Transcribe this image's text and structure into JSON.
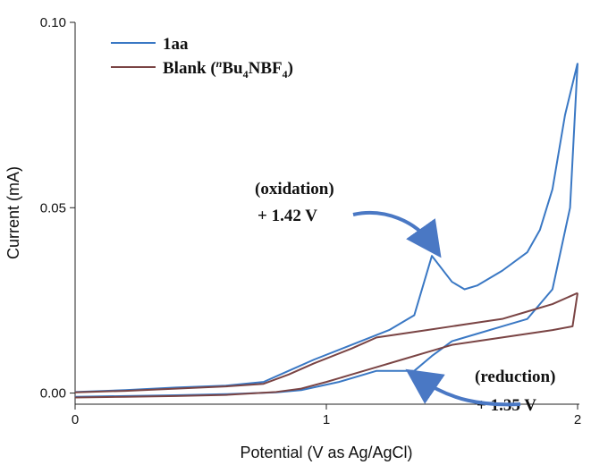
{
  "chart_data": {
    "type": "line",
    "title": "",
    "xlabel": "Potential (V as Ag/AgCl)",
    "ylabel": "Current (mA)",
    "xlim": [
      0,
      2
    ],
    "ylim": [
      -0.003,
      0.1
    ],
    "x_ticks": [
      0,
      1,
      2
    ],
    "x_tick_labels": [
      "0",
      "1",
      "2"
    ],
    "y_ticks": [
      0.0,
      0.05,
      0.1
    ],
    "y_tick_labels": [
      "0.00",
      "0.05",
      "0.10"
    ],
    "grid": false,
    "legend_position": "top-left",
    "legend": {
      "entry1": "1aa",
      "entry2_main": "Blank (",
      "entry2_sup": "n",
      "entry2_bu": "Bu",
      "entry2_sub1": "4",
      "entry2_nbf": "NBF",
      "entry2_sub2": "4",
      "entry2_close": ")"
    },
    "series": [
      {
        "name": "1aa",
        "color": "#3a78c4",
        "forward": {
          "x": [
            0,
            0.2,
            0.4,
            0.6,
            0.75,
            0.85,
            0.95,
            1.1,
            1.25,
            1.35,
            1.42,
            1.5,
            1.55,
            1.6,
            1.7,
            1.8,
            1.85,
            1.9,
            1.95,
            2.0
          ],
          "y": [
            0.0003,
            0.0008,
            0.0015,
            0.002,
            0.003,
            0.006,
            0.009,
            0.013,
            0.017,
            0.021,
            0.037,
            0.03,
            0.028,
            0.029,
            0.033,
            0.038,
            0.044,
            0.055,
            0.075,
            0.089
          ]
        },
        "reverse": {
          "x": [
            2.0,
            1.97,
            1.9,
            1.8,
            1.7,
            1.6,
            1.5,
            1.42,
            1.35,
            1.3,
            1.2,
            1.05,
            0.9,
            0.8,
            0.6,
            0.4,
            0.2,
            0.0
          ],
          "y": [
            0.089,
            0.05,
            0.028,
            0.02,
            0.018,
            0.016,
            0.014,
            0.01,
            0.006,
            0.006,
            0.006,
            0.003,
            0.0008,
            0.0002,
            -0.0003,
            -0.0006,
            -0.0008,
            -0.001
          ]
        }
      },
      {
        "name": "Blank",
        "color": "#7a4444",
        "forward": {
          "x": [
            0,
            0.2,
            0.4,
            0.6,
            0.75,
            0.85,
            0.95,
            1.1,
            1.2,
            1.3,
            1.4,
            1.5,
            1.6,
            1.7,
            1.8,
            1.9,
            2.0
          ],
          "y": [
            0.0002,
            0.0006,
            0.0012,
            0.0018,
            0.0025,
            0.005,
            0.008,
            0.012,
            0.015,
            0.016,
            0.017,
            0.018,
            0.019,
            0.02,
            0.022,
            0.024,
            0.027
          ]
        },
        "reverse": {
          "x": [
            2.0,
            1.98,
            1.9,
            1.8,
            1.7,
            1.6,
            1.5,
            1.4,
            1.3,
            1.2,
            1.1,
            1.0,
            0.9,
            0.8,
            0.6,
            0.4,
            0.2,
            0.0
          ],
          "y": [
            0.027,
            0.018,
            0.017,
            0.016,
            0.015,
            0.014,
            0.013,
            0.011,
            0.009,
            0.007,
            0.005,
            0.003,
            0.0012,
            0.0003,
            -0.0005,
            -0.0008,
            -0.001,
            -0.0012
          ]
        }
      }
    ],
    "annotations": [
      {
        "label": "(oxidation)",
        "value": "+ 1.42 V"
      },
      {
        "label": "(reduction)",
        "value": "+ 1.35 V"
      }
    ]
  }
}
